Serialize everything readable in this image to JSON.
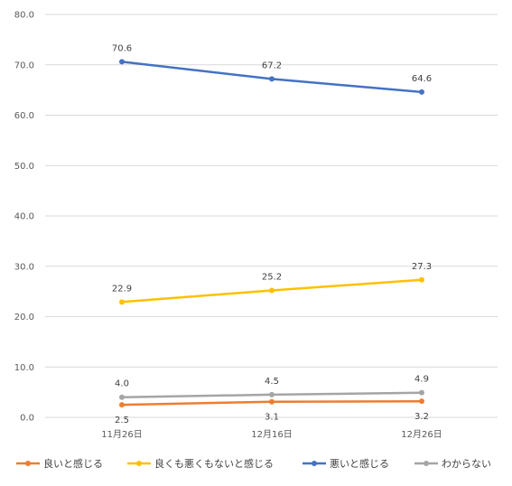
{
  "chart_data": {
    "type": "line",
    "categories": [
      "11月26日",
      "12月16日",
      "12月26日"
    ],
    "ylim": [
      0,
      80
    ],
    "yticks": [
      "0.0",
      "10.0",
      "20.0",
      "30.0",
      "40.0",
      "50.0",
      "60.0",
      "70.0",
      "80.0"
    ],
    "grid": true,
    "legend_position": "bottom",
    "series": [
      {
        "name": "良いと感じる",
        "color": "#ED7D31",
        "values": [
          2.5,
          3.1,
          3.2
        ],
        "labels": [
          "2.5",
          "3.1",
          "3.2"
        ],
        "label_side": "below"
      },
      {
        "name": "良くも悪くもないと感じる",
        "color": "#FFC000",
        "values": [
          22.9,
          25.2,
          27.3
        ],
        "labels": [
          "22.9",
          "25.2",
          "27.3"
        ],
        "label_side": "above"
      },
      {
        "name": "悪いと感じる",
        "color": "#4472C4",
        "values": [
          70.6,
          67.2,
          64.6
        ],
        "labels": [
          "70.6",
          "67.2",
          "64.6"
        ],
        "label_side": "above"
      },
      {
        "name": "わからない",
        "color": "#A5A5A5",
        "values": [
          4.0,
          4.5,
          4.9
        ],
        "labels": [
          "4.0",
          "4.5",
          "4.9"
        ],
        "label_side": "above"
      }
    ]
  }
}
